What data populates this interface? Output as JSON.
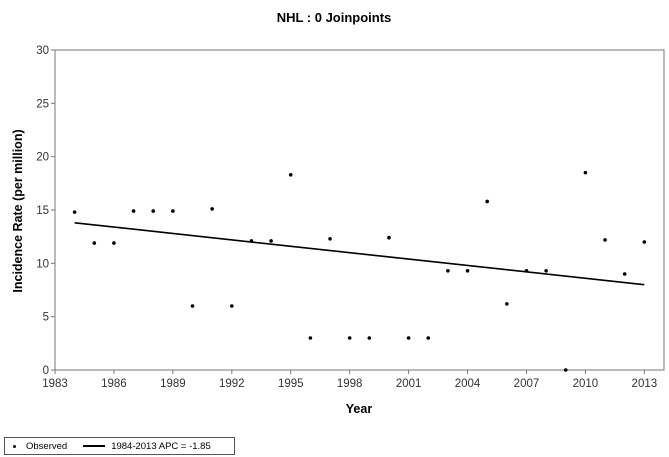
{
  "chart_data": {
    "type": "scatter",
    "title": "NHL : 0 Joinpoints",
    "xlabel": "Year",
    "ylabel": "Incidence Rate (per million)",
    "xlim": [
      1983,
      2014
    ],
    "ylim": [
      0,
      30
    ],
    "xticks": [
      "1983",
      "1986",
      "1989",
      "1992",
      "1995",
      "1998",
      "2001",
      "2004",
      "2007",
      "2010",
      "2013"
    ],
    "yticks": [
      "0",
      "5",
      "10",
      "15",
      "20",
      "25",
      "30"
    ],
    "grid": false,
    "series": [
      {
        "name": "Observed",
        "kind": "points",
        "color": "#000000",
        "x": [
          1984,
          1985,
          1986,
          1987,
          1988,
          1989,
          1990,
          1991,
          1992,
          1993,
          1994,
          1995,
          1996,
          1997,
          1998,
          1999,
          2000,
          2001,
          2002,
          2003,
          2004,
          2005,
          2006,
          2007,
          2008,
          2009,
          2010,
          2011,
          2012,
          2013
        ],
        "y": [
          14.8,
          11.9,
          11.9,
          14.9,
          14.9,
          14.9,
          6.0,
          15.1,
          6.0,
          12.1,
          12.1,
          18.3,
          3.0,
          12.3,
          3.0,
          3.0,
          12.4,
          3.0,
          3.0,
          9.3,
          9.3,
          15.8,
          6.2,
          9.3,
          9.3,
          0.0,
          18.5,
          12.2,
          9.0,
          12.0
        ]
      },
      {
        "name": "1984-2013 APC = -1.85",
        "kind": "line",
        "color": "#000000",
        "x": [
          1984,
          2013
        ],
        "y": [
          13.8,
          8.0
        ]
      }
    ],
    "legend": {
      "position": "bottom-left",
      "observed_label": "Observed",
      "fit_label": "1984-2013 APC  = -1.85"
    }
  }
}
